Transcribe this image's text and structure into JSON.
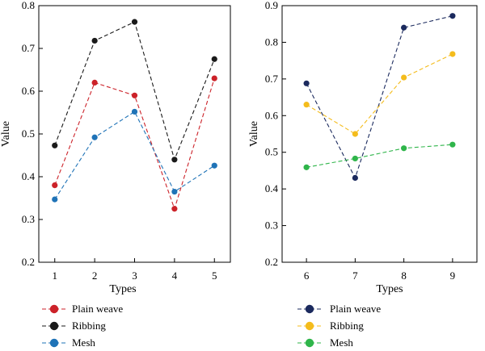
{
  "chart_data": [
    {
      "type": "line",
      "xlabel": "Types",
      "ylabel": "Value",
      "x": [
        1,
        2,
        3,
        4,
        5
      ],
      "xticks": [
        "1",
        "2",
        "3",
        "4",
        "5"
      ],
      "xlim": [
        0.6,
        5.4
      ],
      "ylim": [
        0.2,
        0.8
      ],
      "yticks": [
        "0.2",
        "0.3",
        "0.4",
        "0.5",
        "0.6",
        "0.7",
        "0.8"
      ],
      "grid": false,
      "legend_position": "bottom",
      "series": [
        {
          "name": "Plain weave",
          "color": "#cc2229",
          "values": [
            0.38,
            0.62,
            0.59,
            0.325,
            0.63
          ]
        },
        {
          "name": "Ribbing",
          "color": "#1a1a1a",
          "values": [
            0.473,
            0.718,
            0.762,
            0.44,
            0.675
          ]
        },
        {
          "name": "Mesh",
          "color": "#1f73b7",
          "values": [
            0.347,
            0.492,
            0.552,
            0.365,
            0.426
          ]
        }
      ]
    },
    {
      "type": "line",
      "xlabel": "Types",
      "ylabel": "Value",
      "x": [
        6,
        7,
        8,
        9
      ],
      "xticks": [
        "6",
        "7",
        "8",
        "9"
      ],
      "xlim": [
        5.5,
        9.5
      ],
      "ylim": [
        0.2,
        0.9
      ],
      "yticks": [
        "0.2",
        "0.3",
        "0.4",
        "0.5",
        "0.6",
        "0.7",
        "0.8",
        "0.9"
      ],
      "grid": false,
      "legend_position": "bottom",
      "series": [
        {
          "name": "Plain weave",
          "color": "#1b2a5e",
          "values": [
            0.688,
            0.43,
            0.84,
            0.872
          ]
        },
        {
          "name": "Ribbing",
          "color": "#f4bc1c",
          "values": [
            0.63,
            0.55,
            0.704,
            0.768
          ]
        },
        {
          "name": "Mesh",
          "color": "#2fb54a",
          "values": [
            0.459,
            0.483,
            0.511,
            0.521
          ]
        }
      ]
    }
  ]
}
